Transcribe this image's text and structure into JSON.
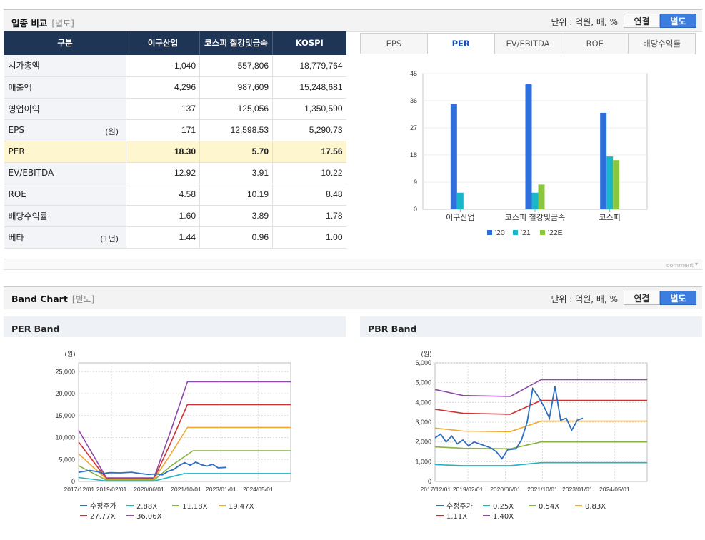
{
  "compare": {
    "title": "업종 비교",
    "subtitle": "[별도]",
    "unit": "단위 : 억원, 배, %",
    "toggle": [
      "연결",
      "별도"
    ],
    "headers": [
      "구분",
      "이구산업",
      "코스피 철강및금속",
      "KOSPI"
    ],
    "rows": [
      {
        "label": "시가총액",
        "unit": "",
        "values": [
          "1,040",
          "557,806",
          "18,779,764"
        ]
      },
      {
        "label": "매출액",
        "unit": "",
        "values": [
          "4,296",
          "987,609",
          "15,248,681"
        ]
      },
      {
        "label": "영업이익",
        "unit": "",
        "values": [
          "137",
          "125,056",
          "1,350,590"
        ]
      },
      {
        "label": "EPS",
        "unit": "(원)",
        "values": [
          "171",
          "12,598.53",
          "5,290.73"
        ]
      },
      {
        "label": "PER",
        "unit": "",
        "values": [
          "18.30",
          "5.70",
          "17.56"
        ]
      },
      {
        "label": "EV/EBITDA",
        "unit": "",
        "values": [
          "12.92",
          "3.91",
          "10.22"
        ]
      },
      {
        "label": "ROE",
        "unit": "",
        "values": [
          "4.58",
          "10.19",
          "8.48"
        ]
      },
      {
        "label": "배당수익률",
        "unit": "",
        "values": [
          "1.60",
          "3.89",
          "1.78"
        ]
      },
      {
        "label": "베타",
        "unit": "(1년)",
        "values": [
          "1.44",
          "0.96",
          "1.00"
        ]
      }
    ],
    "tabs": [
      "EPS",
      "PER",
      "EV/EBITDA",
      "ROE",
      "배당수익률"
    ],
    "active_tab": "PER",
    "comment": "comment"
  },
  "band": {
    "title": "Band Chart",
    "subtitle": "[별도]",
    "unit": "단위 : 억원, 배, %",
    "toggle": [
      "연결",
      "별도"
    ],
    "per_title": "PER Band",
    "pbr_title": "PBR Band"
  },
  "colors": {
    "price": "#2e6fc2",
    "b1": "#1fb4c3",
    "b2": "#86b341",
    "b3": "#f0a830",
    "b4": "#d03030",
    "b5": "#8e4aa8",
    "bar20": "#2f6fdc",
    "bar21": "#19b6c9",
    "bar22": "#8cc63f"
  },
  "chart_data": [
    {
      "type": "bar",
      "title": "PER",
      "categories": [
        "이구산업",
        "코스피 철강및금속",
        "코스피"
      ],
      "series": [
        {
          "name": "'20",
          "values": [
            35,
            41.5,
            32
          ]
        },
        {
          "name": "'21",
          "values": [
            5.5,
            5.5,
            17.5
          ]
        },
        {
          "name": "'22E",
          "values": [
            0,
            8.2,
            16.3
          ]
        }
      ],
      "yticks": [
        0,
        9,
        18,
        27,
        36,
        45
      ],
      "ylim": [
        0,
        45
      ]
    },
    {
      "type": "line",
      "title": "PER Band",
      "ylabel": "(원)",
      "yticks": [
        "0",
        "5,000",
        "10,000",
        "15,000",
        "20,000",
        "25,000"
      ],
      "ylim": [
        0,
        27000
      ],
      "xlim": [
        2017.9,
        2025.5
      ],
      "xticks": [
        "2017/12/01",
        "2019/02/01",
        "2020/06/01",
        "2021/10/01",
        "2023/01/01",
        "2024/05/01"
      ],
      "legend": [
        "수정주가",
        "2.88X",
        "11.18X",
        "19.47X",
        "27.77X",
        "36.06X"
      ],
      "series": [
        {
          "name": "수정주가",
          "x": [
            2017.9,
            2018.3,
            2018.6,
            2018.8,
            2019.0,
            2019.4,
            2019.8,
            2020.1,
            2020.4,
            2020.7,
            2020.9,
            2021.1,
            2021.3,
            2021.5,
            2021.7,
            2021.9,
            2022.1,
            2022.3,
            2022.5,
            2022.7,
            2022.9,
            2023.2
          ],
          "y": [
            2100,
            2500,
            2200,
            1800,
            2000,
            1950,
            2100,
            1800,
            1600,
            1700,
            1500,
            2300,
            2700,
            3600,
            4300,
            3700,
            4400,
            3800,
            3500,
            3900,
            3100,
            3200
          ]
        },
        {
          "name": "2.88X",
          "x": [
            2017.9,
            2018.9,
            2020.6,
            2021.7,
            2025.5
          ],
          "y": [
            900,
            100,
            100,
            1800,
            1800
          ]
        },
        {
          "name": "11.18X",
          "x": [
            2017.9,
            2018.9,
            2020.6,
            2021.2,
            2022.0,
            2025.5
          ],
          "y": [
            3600,
            300,
            300,
            3500,
            7000,
            7000
          ]
        },
        {
          "name": "19.47X",
          "x": [
            2017.9,
            2018.9,
            2020.6,
            2021.2,
            2021.8,
            2025.5
          ],
          "y": [
            6300,
            500,
            500,
            6200,
            12300,
            12300
          ]
        },
        {
          "name": "27.77X",
          "x": [
            2017.9,
            2018.9,
            2020.6,
            2021.2,
            2021.8,
            2025.5
          ],
          "y": [
            9000,
            600,
            600,
            8800,
            17500,
            17500
          ]
        },
        {
          "name": "36.06X",
          "x": [
            2017.9,
            2018.9,
            2020.6,
            2021.2,
            2021.8,
            2025.5
          ],
          "y": [
            11700,
            800,
            800,
            11500,
            22700,
            22700
          ]
        }
      ]
    },
    {
      "type": "line",
      "title": "PBR Band",
      "ylabel": "(원)",
      "yticks": [
        "0",
        "1,000",
        "2,000",
        "3,000",
        "4,000",
        "5,000",
        "6,000"
      ],
      "ylim": [
        0,
        6000
      ],
      "xlim": [
        2017.9,
        2025.5
      ],
      "xticks": [
        "2017/12/01",
        "2019/02/01",
        "2020/06/01",
        "2021/10/01",
        "2023/01/01",
        "2024/05/01"
      ],
      "legend": [
        "수정주가",
        "0.25X",
        "0.54X",
        "0.83X",
        "1.11X",
        "1.40X"
      ],
      "series": [
        {
          "name": "수정주가",
          "x": [
            2017.9,
            2018.1,
            2018.3,
            2018.5,
            2018.7,
            2018.9,
            2019.1,
            2019.3,
            2019.6,
            2019.9,
            2020.1,
            2020.3,
            2020.5,
            2020.8,
            2021.0,
            2021.2,
            2021.4,
            2021.6,
            2021.8,
            2022.0,
            2022.2,
            2022.4,
            2022.6,
            2022.8,
            2023.0,
            2023.2
          ],
          "y": [
            2200,
            2400,
            2000,
            2300,
            1900,
            2100,
            1800,
            2000,
            1850,
            1700,
            1500,
            1150,
            1600,
            1650,
            2100,
            3000,
            4700,
            4300,
            3800,
            3200,
            4800,
            3100,
            3200,
            2600,
            3100,
            3200
          ]
        },
        {
          "name": "0.25X",
          "x": [
            2017.9,
            2018.9,
            2020.6,
            2021.7,
            2025.5
          ],
          "y": [
            850,
            800,
            800,
            950,
            950
          ]
        },
        {
          "name": "0.54X",
          "x": [
            2017.9,
            2018.9,
            2020.6,
            2021.7,
            2025.5
          ],
          "y": [
            1750,
            1680,
            1650,
            2000,
            2000
          ]
        },
        {
          "name": "0.83X",
          "x": [
            2017.9,
            2018.9,
            2020.6,
            2021.7,
            2025.5
          ],
          "y": [
            2700,
            2550,
            2520,
            3050,
            3050
          ]
        },
        {
          "name": "1.11X",
          "x": [
            2017.9,
            2018.9,
            2020.6,
            2021.7,
            2025.5
          ],
          "y": [
            3650,
            3450,
            3400,
            4100,
            4100
          ]
        },
        {
          "name": "1.40X",
          "x": [
            2017.9,
            2018.9,
            2020.6,
            2021.7,
            2025.5
          ],
          "y": [
            4650,
            4350,
            4300,
            5150,
            5150
          ]
        }
      ]
    }
  ]
}
